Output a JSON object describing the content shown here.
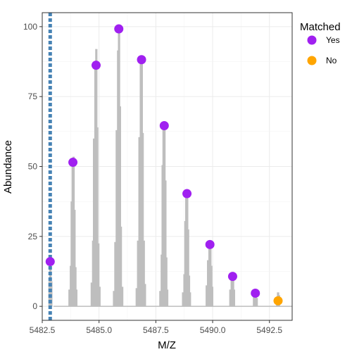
{
  "chart_data": {
    "type": "scatter",
    "xlabel": "M/Z",
    "ylabel": "Abundance",
    "xlim": [
      5482.5,
      5493.5
    ],
    "ylim": [
      -5,
      105
    ],
    "x_ticks": [
      5482.5,
      5485.0,
      5487.5,
      5490.0,
      5492.5
    ],
    "x_tick_labels": [
      "5482.5",
      "5485.0",
      "5487.5",
      "5490.0",
      "5492.5"
    ],
    "y_ticks": [
      0,
      25,
      50,
      75,
      100
    ],
    "y_tick_labels": [
      "0",
      "25",
      "50",
      "75",
      "100"
    ],
    "grid": true,
    "legend": {
      "title": "Matched",
      "placement": "right",
      "entries": [
        {
          "label": "Yes",
          "color": "#a020f0"
        },
        {
          "label": "No",
          "color": "#ffa500"
        }
      ]
    },
    "reference_line": {
      "x": 5482.85,
      "color": "#4682b4",
      "style": "dotted"
    },
    "points": [
      {
        "x": 5482.85,
        "y": 16.0,
        "matched": "Yes"
      },
      {
        "x": 5483.85,
        "y": 51.5,
        "matched": "Yes"
      },
      {
        "x": 5484.87,
        "y": 86.2,
        "matched": "Yes"
      },
      {
        "x": 5485.87,
        "y": 99.2,
        "matched": "Yes"
      },
      {
        "x": 5486.87,
        "y": 88.2,
        "matched": "Yes"
      },
      {
        "x": 5487.87,
        "y": 64.6,
        "matched": "Yes"
      },
      {
        "x": 5488.87,
        "y": 40.3,
        "matched": "Yes"
      },
      {
        "x": 5489.88,
        "y": 22.1,
        "matched": "Yes"
      },
      {
        "x": 5490.88,
        "y": 10.7,
        "matched": "Yes"
      },
      {
        "x": 5491.88,
        "y": 4.7,
        "matched": "Yes"
      },
      {
        "x": 5492.88,
        "y": 2.0,
        "matched": "No"
      }
    ],
    "spectrum_color": "#bebebe",
    "spectrum": [
      [
        [
          5482.82,
          9.0
        ],
        [
          5482.86,
          16.0
        ],
        [
          5482.9,
          9.0
        ]
      ],
      [
        [
          5483.7,
          6.0
        ],
        [
          5483.76,
          14.5
        ],
        [
          5483.8,
          37.5
        ],
        [
          5483.84,
          51.5
        ],
        [
          5483.88,
          53.5
        ],
        [
          5483.92,
          34.5
        ],
        [
          5483.96,
          14.0
        ],
        [
          5484.0,
          6.0
        ]
      ],
      [
        [
          5484.68,
          8.5
        ],
        [
          5484.74,
          23.5
        ],
        [
          5484.78,
          60.0
        ],
        [
          5484.84,
          86.0
        ],
        [
          5484.88,
          92.0
        ],
        [
          5484.92,
          64.0
        ],
        [
          5484.97,
          22.5
        ],
        [
          5485.02,
          7.0
        ]
      ],
      [
        [
          5485.66,
          5.5
        ],
        [
          5485.72,
          23.0
        ],
        [
          5485.78,
          63.0
        ],
        [
          5485.84,
          91.5
        ],
        [
          5485.88,
          99.0
        ],
        [
          5485.92,
          71.5
        ],
        [
          5485.96,
          28.5
        ],
        [
          5486.02,
          7.0
        ]
      ],
      [
        [
          5486.66,
          6.5
        ],
        [
          5486.72,
          23.5
        ],
        [
          5486.78,
          60.5
        ],
        [
          5486.84,
          87.0
        ],
        [
          5486.88,
          88.0
        ],
        [
          5486.92,
          62.0
        ],
        [
          5486.97,
          23.5
        ],
        [
          5487.02,
          8.0
        ]
      ],
      [
        [
          5487.7,
          5.5
        ],
        [
          5487.76,
          18.5
        ],
        [
          5487.8,
          50.5
        ],
        [
          5487.84,
          64.0
        ],
        [
          5487.88,
          64.5
        ],
        [
          5487.92,
          45.0
        ],
        [
          5487.96,
          17.5
        ],
        [
          5488.0,
          6.0
        ]
      ],
      [
        [
          5488.7,
          5.0
        ],
        [
          5488.76,
          11.5
        ],
        [
          5488.8,
          30.5
        ],
        [
          5488.84,
          40.0
        ],
        [
          5488.88,
          40.0
        ],
        [
          5488.92,
          27.5
        ],
        [
          5488.96,
          11.0
        ],
        [
          5489.0,
          5.0
        ]
      ],
      [
        [
          5489.74,
          7.5
        ],
        [
          5489.8,
          16.5
        ],
        [
          5489.86,
          22.0
        ],
        [
          5489.9,
          21.0
        ],
        [
          5489.94,
          14.5
        ],
        [
          5489.98,
          7.0
        ]
      ],
      [
        [
          5490.78,
          6.0
        ],
        [
          5490.84,
          10.5
        ],
        [
          5490.9,
          10.5
        ],
        [
          5490.94,
          6.0
        ]
      ],
      [
        [
          5491.82,
          3.5
        ],
        [
          5491.86,
          4.5
        ],
        [
          5491.9,
          4.0
        ],
        [
          5491.94,
          3.0
        ]
      ],
      [
        [
          5492.84,
          3.0
        ],
        [
          5492.88,
          5.0
        ],
        [
          5492.92,
          4.0
        ]
      ]
    ]
  }
}
